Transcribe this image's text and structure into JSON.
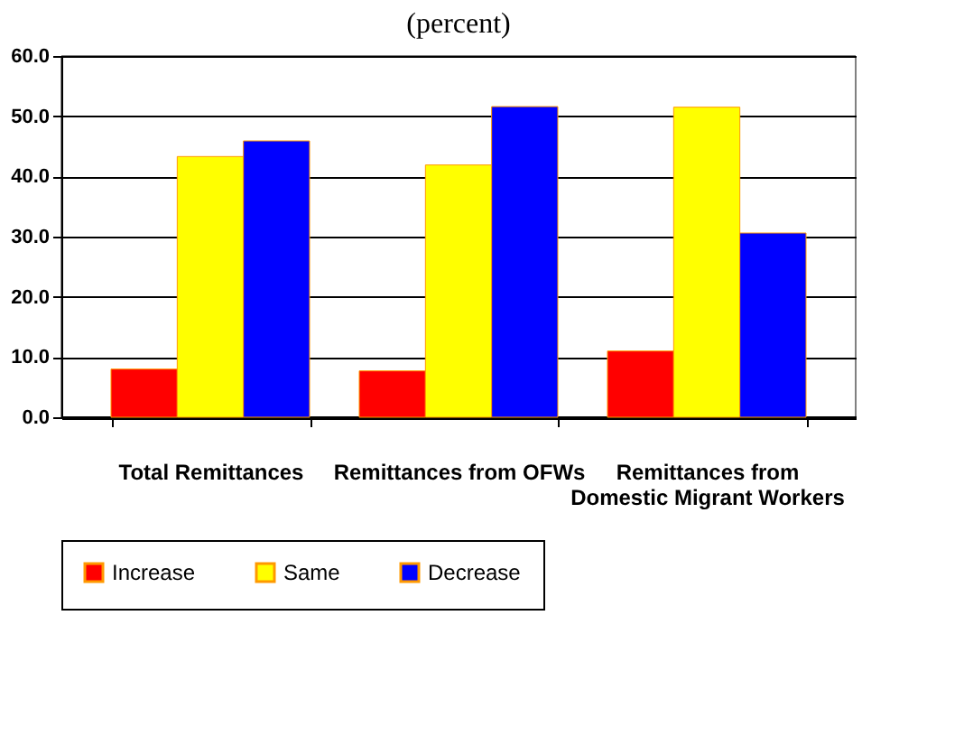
{
  "chart_data": {
    "type": "bar",
    "title": "(percent)",
    "categories": [
      "Total Remittances",
      "Remittances from OFWs",
      "Remittances from Domestic Migrant Workers"
    ],
    "series": [
      {
        "name": "Increase",
        "color": "#ff0000",
        "values": [
          8.0,
          7.7,
          11.0
        ]
      },
      {
        "name": "Same",
        "color": "#ffff00",
        "values": [
          43.3,
          41.9,
          51.5
        ]
      },
      {
        "name": "Decrease",
        "color": "#0000ff",
        "values": [
          45.9,
          51.6,
          30.6
        ]
      }
    ],
    "ylim": [
      0,
      60
    ],
    "yticks": [
      {
        "value": 0,
        "label": "0.0"
      },
      {
        "value": 10,
        "label": "10.0"
      },
      {
        "value": 20,
        "label": "20.0"
      },
      {
        "value": 30,
        "label": "30.0"
      },
      {
        "value": 40,
        "label": "40.0"
      },
      {
        "value": 50,
        "label": "50.0"
      },
      {
        "value": 60,
        "label": "60.0"
      }
    ],
    "grid": "y",
    "legend": "bottom left"
  }
}
